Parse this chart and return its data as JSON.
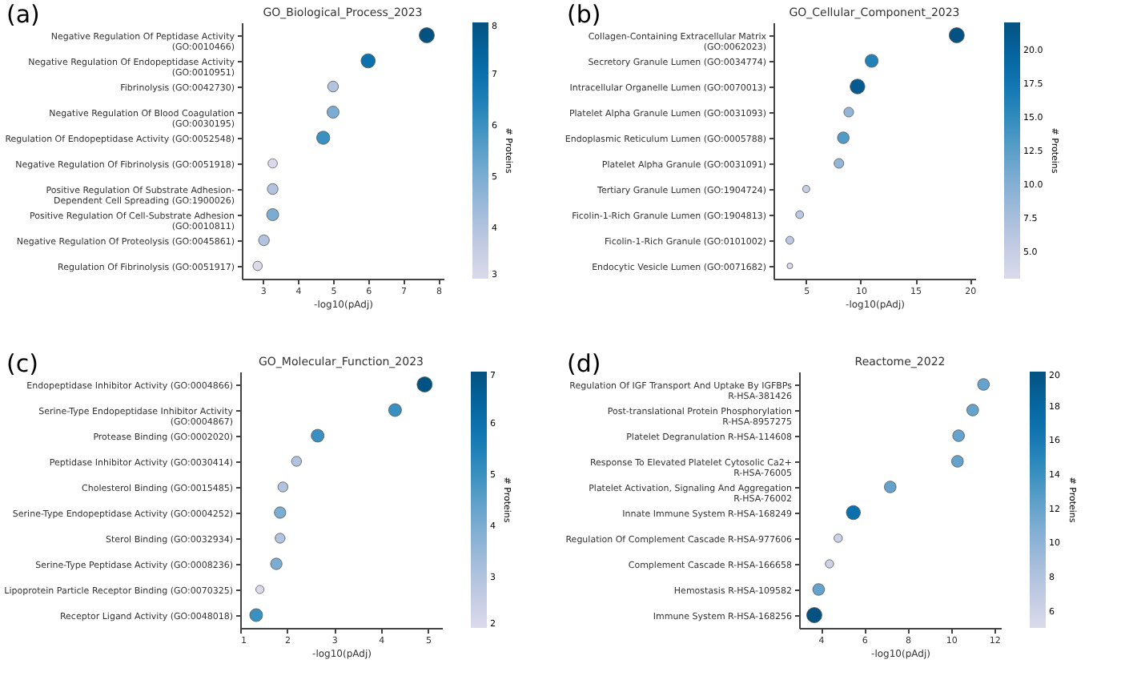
{
  "chart_data": [
    {
      "type": "bubble",
      "orientation": "horizontal",
      "title": "GO_Biological_Process_2023",
      "xlabel": "-log10(pAdj)",
      "clabel": "# Proteins",
      "annotations": [
        "(a)"
      ],
      "categories": [
        "Negative Regulation Of Peptidase Activity\n(GO:0010466)",
        "Negative Regulation Of Endopeptidase Activity\n(GO:0010951)",
        "Fibrinolysis (GO:0042730)",
        "Negative Regulation Of Blood Coagulation\n(GO:0030195)",
        "Regulation Of Endopeptidase Activity (GO:0052548)",
        "Negative Regulation Of Fibrinolysis (GO:0051918)",
        "Positive Regulation Of Substrate Adhesion-\nDependent Cell Spreading (GO:1900026)",
        "Positive Regulation Of Cell-Substrate Adhesion\n(GO:0010811)",
        "Negative Regulation Of Proteolysis (GO:0045861)",
        "Regulation Of Fibrinolysis (GO:0051917)"
      ],
      "values": [
        7.67,
        6.0,
        5.0,
        5.0,
        4.72,
        3.28,
        3.28,
        3.28,
        3.03,
        2.85
      ],
      "cvalues": [
        8,
        7,
        4,
        5,
        6,
        3,
        4,
        5,
        4,
        3
      ],
      "sizes": [
        1,
        0.875,
        0.5,
        0.625,
        0.75,
        0.375,
        0.5,
        0.625,
        0.5,
        0.375
      ],
      "xlim": [
        2.4,
        8.15
      ],
      "xticks": [
        3,
        4,
        5,
        6,
        7,
        8
      ],
      "clim": [
        3,
        8
      ],
      "cticks": [
        3,
        4,
        5,
        6,
        7,
        8
      ]
    },
    {
      "type": "bubble",
      "orientation": "horizontal",
      "title": "GO_Cellular_Component_2023",
      "xlabel": "-log10(pAdj)",
      "clabel": "# Proteins",
      "annotations": [
        "(b)"
      ],
      "categories": [
        "Collagen-Containing Extracellular Matrix\n(GO:0062023)",
        "Secretory Granule Lumen (GO:0034774)",
        "Intracellular Organelle Lumen (GO:0070013)",
        "Platelet Alpha Granule Lumen (GO:0031093)",
        "Endoplasmic Reticulum Lumen (GO:0005788)",
        "Platelet Alpha Granule (GO:0031091)",
        "Tertiary Granule Lumen (GO:1904724)",
        "Ficolin-1-Rich Granule Lumen (GO:1904813)",
        "Ficolin-1-Rich Granule (GO:0101002)",
        "Endocytic Vesicle Lumen (GO:0071682)"
      ],
      "values": [
        18.8,
        11.0,
        9.7,
        8.9,
        8.4,
        8.0,
        5.0,
        4.4,
        3.5,
        3.5
      ],
      "cvalues": [
        22,
        16,
        21,
        9,
        13,
        9,
        5,
        6,
        6,
        3
      ],
      "sizes": [
        1,
        0.73,
        0.95,
        0.41,
        0.59,
        0.41,
        0.23,
        0.27,
        0.27,
        0.14
      ],
      "xlim": [
        2,
        20.5
      ],
      "xticks": [
        5,
        10,
        15,
        20
      ],
      "clim": [
        3,
        22
      ],
      "cticks": [
        {
          "value": 5,
          "label": "5.0"
        },
        {
          "value": 7.5,
          "label": "7.5"
        },
        {
          "value": 10,
          "label": "10.0"
        },
        {
          "value": 12.5,
          "label": "12.5"
        },
        {
          "value": 15,
          "label": "15.0"
        },
        {
          "value": 17.5,
          "label": "17.5"
        },
        {
          "value": 20,
          "label": "20.0"
        }
      ]
    },
    {
      "type": "bubble",
      "orientation": "horizontal",
      "title": "GO_Molecular_Function_2023",
      "xlabel": "-log10(pAdj)",
      "clabel": "# Proteins",
      "annotations": [
        "(c)"
      ],
      "categories": [
        "Endopeptidase Inhibitor Activity (GO:0004866)",
        "Serine-Type Endopeptidase Inhibitor Activity\n(GO:0004867)",
        "Protease Binding (GO:0002020)",
        "Peptidase Inhibitor Activity (GO:0030414)",
        "Cholesterol Binding (GO:0015485)",
        "Serine-Type Endopeptidase Activity (GO:0004252)",
        "Sterol Binding (GO:0032934)",
        "Serine-Type Peptidase Activity (GO:0008236)",
        "Lipoprotein Particle Receptor Binding (GO:0070325)",
        "Receptor Ligand Activity (GO:0048018)"
      ],
      "values": [
        4.93,
        4.3,
        2.65,
        2.2,
        1.91,
        1.85,
        1.85,
        1.77,
        1.42,
        1.34
      ],
      "cvalues": [
        7,
        5,
        5,
        3,
        3,
        4,
        3,
        4,
        2,
        5
      ],
      "sizes": [
        1,
        0.71,
        0.71,
        0.43,
        0.43,
        0.57,
        0.43,
        0.57,
        0.29,
        0.71
      ],
      "xlim": [
        1,
        5.3
      ],
      "xticks": [
        1,
        2,
        3,
        4,
        5
      ],
      "clim": [
        2,
        7
      ],
      "cticks": [
        2,
        3,
        4,
        5,
        6,
        7
      ]
    },
    {
      "type": "bubble",
      "orientation": "horizontal",
      "title": "Reactome_2022",
      "xlabel": "-log10(pAdj)",
      "clabel": "# Proteins",
      "annotations": [
        "(d)"
      ],
      "categories": [
        "Regulation Of IGF Transport And Uptake By IGFBPs\nR-HSA-381426",
        "Post-translational Protein Phosphorylation\nR-HSA-8957275",
        "Platelet Degranulation R-HSA-114608",
        "Response To Elevated Platelet Cytosolic Ca2+\nR-HSA-76005",
        "Platelet Activation, Signaling And Aggregation\nR-HSA-76002",
        "Innate Immune System R-HSA-168249",
        "Regulation Of Complement Cascade R-HSA-977606",
        "Complement Cascade R-HSA-166658",
        "Hemostasis R-HSA-109582",
        "Immune System R-HSA-168256"
      ],
      "values": [
        11.5,
        11.0,
        10.35,
        10.3,
        7.2,
        5.5,
        4.8,
        4.4,
        3.9,
        3.7
      ],
      "cvalues": [
        12,
        12,
        12,
        12,
        12,
        17,
        6,
        6,
        12,
        20
      ],
      "sizes": [
        0.6,
        0.6,
        0.6,
        0.6,
        0.6,
        0.85,
        0.3,
        0.3,
        0.6,
        1
      ],
      "xlim": [
        3,
        12.3
      ],
      "xticks": [
        4,
        6,
        8,
        10,
        12
      ],
      "clim": [
        5,
        20
      ],
      "cticks": [
        6,
        8,
        10,
        12,
        14,
        16,
        18,
        20
      ]
    }
  ]
}
